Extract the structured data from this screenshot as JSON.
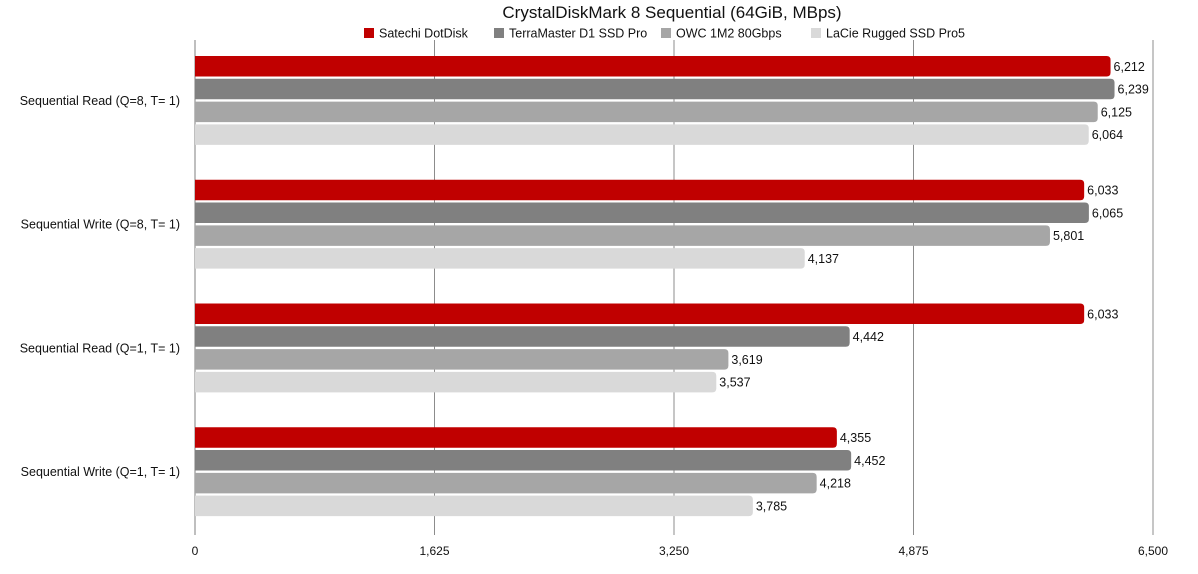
{
  "chart_data": {
    "type": "bar",
    "orientation": "horizontal",
    "title": "CrystalDiskMark 8 Sequential (64GiB, MBps)",
    "categories": [
      "Sequential Read (Q=8, T= 1)",
      "Sequential Write (Q=8, T= 1)",
      "Sequential Read (Q=1, T= 1)",
      "Sequential Write (Q=1, T= 1)"
    ],
    "series": [
      {
        "name": "Satechi DotDisk",
        "color": "#c00000",
        "values": [
          6212,
          6033,
          6033,
          4355
        ],
        "labels": [
          "6,212",
          "6,033",
          "6,033",
          "4,355"
        ]
      },
      {
        "name": "TerraMaster D1 SSD Pro",
        "color": "#808080",
        "values": [
          6239,
          6065,
          4442,
          4452
        ],
        "labels": [
          "6,239",
          "6,065",
          "4,442",
          "4,452"
        ]
      },
      {
        "name": "OWC 1M2 80Gbps",
        "color": "#a6a6a6",
        "values": [
          6125,
          5801,
          3619,
          4218
        ],
        "labels": [
          "6,125",
          "5,801",
          "3,619",
          "4,218"
        ]
      },
      {
        "name": "LaCie Rugged SSD Pro5",
        "color": "#d9d9d9",
        "values": [
          6064,
          4137,
          3537,
          3785
        ],
        "labels": [
          "6,064",
          "4,137",
          "3,537",
          "3,785"
        ]
      }
    ],
    "xlim": [
      0,
      6500
    ],
    "ticks": [
      0,
      1625,
      3250,
      4875,
      6500
    ],
    "tick_labels": [
      "0",
      "1,625",
      "3,250",
      "4,875",
      "6,500"
    ],
    "grid": "vertical",
    "legend_position": "top"
  }
}
